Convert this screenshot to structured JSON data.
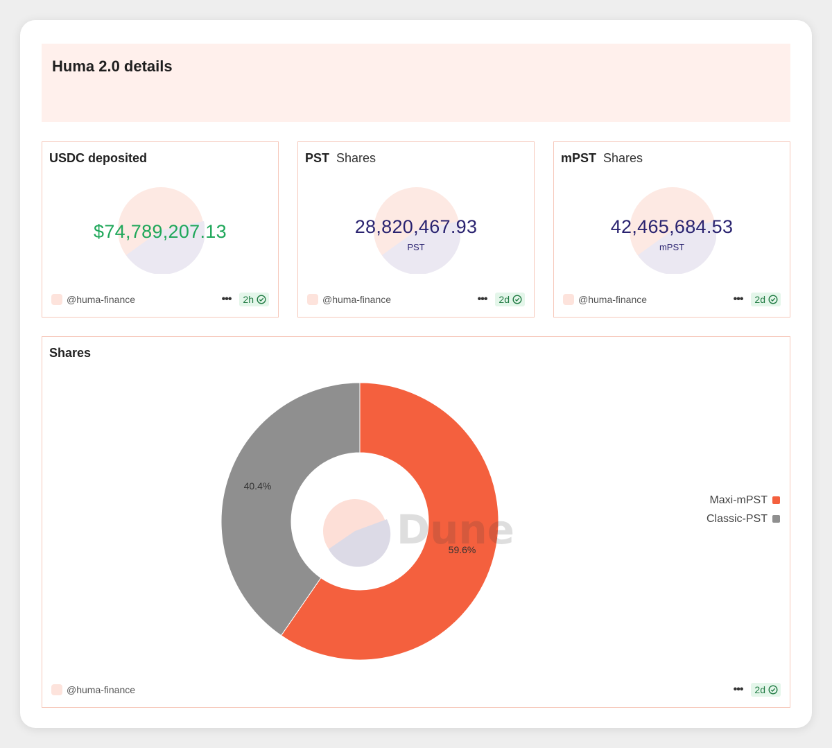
{
  "dashboard": {
    "title": "Huma 2.0 details"
  },
  "counters": [
    {
      "title": "USDC deposited",
      "subtitle": "",
      "value": "$74,789,207.13",
      "value_color": "#1fa75a",
      "unit": "",
      "owner": "@huma-finance",
      "age": "2h"
    },
    {
      "title": "PST",
      "subtitle": "Shares",
      "value": "28,820,467.93",
      "value_color": "#2a2370",
      "unit": "PST",
      "owner": "@huma-finance",
      "age": "2d"
    },
    {
      "title": "mPST",
      "subtitle": "Shares",
      "value": "42,465,684.53",
      "value_color": "#2a2370",
      "unit": "mPST",
      "owner": "@huma-finance",
      "age": "2d"
    }
  ],
  "shares_panel": {
    "title": "Shares",
    "owner": "@huma-finance",
    "age": "2d",
    "watermark": "Dune"
  },
  "chart_data": {
    "type": "pie",
    "title": "Shares",
    "categories": [
      "Maxi-mPST",
      "Classic-PST"
    ],
    "values": [
      59.6,
      40.4
    ],
    "labels": [
      "59.6%",
      "40.4%"
    ],
    "colors": [
      "#f4603e",
      "#8f8f8f"
    ],
    "donut": true,
    "legend": "right"
  },
  "colors": {
    "accent_border": "#f6c8ba",
    "banner_bg": "#fff0ec",
    "badge_bg": "#e4f6ea",
    "badge_text": "#1f7a42"
  }
}
